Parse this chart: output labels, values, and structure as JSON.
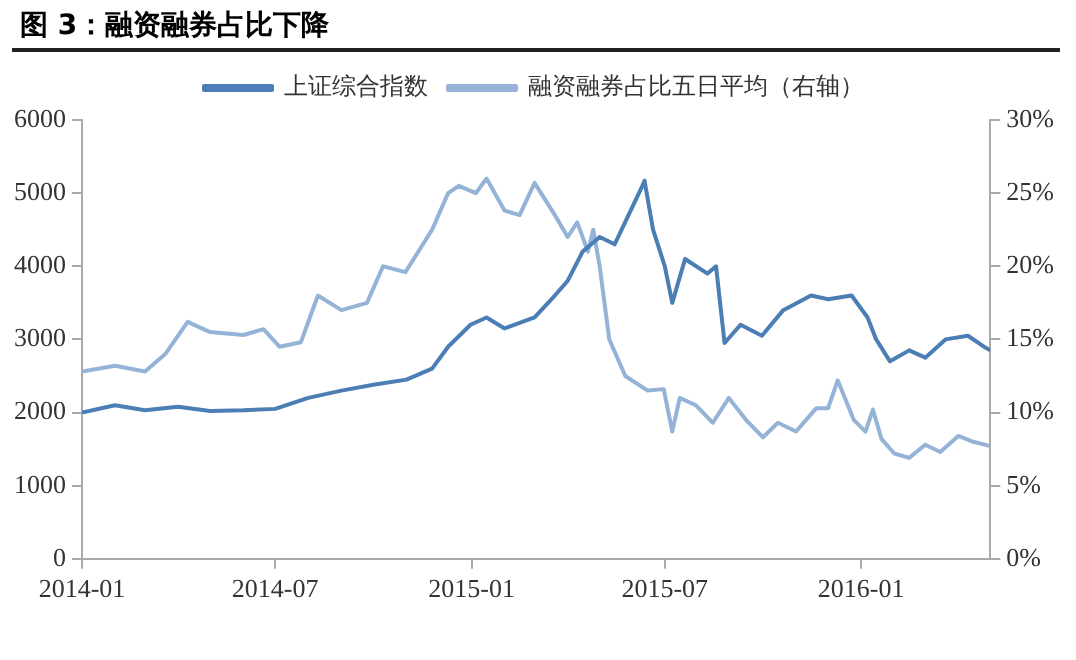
{
  "chart_data": {
    "type": "line",
    "title": "图 3：融资融券占比下降",
    "x": [
      "2014-01-01",
      "2014-02-01",
      "2014-03-01",
      "2014-04-01",
      "2014-05-01",
      "2014-06-01",
      "2014-07-01",
      "2014-08-01",
      "2014-09-01",
      "2014-10-01",
      "2014-11-01",
      "2014-11-25",
      "2014-12-10",
      "2014-12-31",
      "2015-01-15",
      "2015-02-01",
      "2015-03-01",
      "2015-03-20",
      "2015-04-01",
      "2015-04-15",
      "2015-05-01",
      "2015-05-15",
      "2015-06-10",
      "2015-06-12",
      "2015-06-20",
      "2015-07-01",
      "2015-07-08",
      "2015-07-20",
      "2015-08-10",
      "2015-08-18",
      "2015-08-26",
      "2015-09-10",
      "2015-09-30",
      "2015-10-20",
      "2015-11-15",
      "2015-12-01",
      "2015-12-23",
      "2016-01-07",
      "2016-01-15",
      "2016-01-28",
      "2016-02-15",
      "2016-03-01",
      "2016-03-20",
      "2016-04-10",
      "2016-04-25",
      "2016-05-01"
    ],
    "series": [
      {
        "name": "上证综合指数",
        "color": "#4a7eb5",
        "values": [
          2000,
          2100,
          2030,
          2080,
          2020,
          2030,
          2050,
          2200,
          2300,
          2380,
          2450,
          2600,
          2900,
          3200,
          3300,
          3150,
          3300,
          3600,
          3800,
          4200,
          4400,
          4300,
          5100,
          5170,
          4500,
          4000,
          3500,
          4100,
          3900,
          4000,
          2950,
          3200,
          3050,
          3400,
          3600,
          3550,
          3600,
          3300,
          3000,
          2700,
          2850,
          2750,
          3000,
          3050,
          2900,
          2850
        ]
      },
      {
        "name": "融资融券占比五日平均（右轴）",
        "color": "#95b3d7",
        "axis": "y2",
        "x": [
          "2014-01-01",
          "2014-02-01",
          "2014-03-01",
          "2014-03-20",
          "2014-04-10",
          "2014-05-01",
          "2014-06-01",
          "2014-06-20",
          "2014-07-05",
          "2014-07-25",
          "2014-08-10",
          "2014-09-01",
          "2014-09-25",
          "2014-10-10",
          "2014-10-31",
          "2014-11-25",
          "2014-12-10",
          "2014-12-20",
          "2015-01-05",
          "2015-01-15",
          "2015-02-01",
          "2015-02-15",
          "2015-03-01",
          "2015-03-20",
          "2015-04-01",
          "2015-04-10",
          "2015-04-20",
          "2015-04-25",
          "2015-05-01",
          "2015-05-10",
          "2015-05-25",
          "2015-06-15",
          "2015-06-30",
          "2015-07-08",
          "2015-07-15",
          "2015-07-30",
          "2015-08-15",
          "2015-08-30",
          "2015-09-15",
          "2015-10-01",
          "2015-10-15",
          "2015-11-01",
          "2015-11-20",
          "2015-12-01",
          "2015-12-10",
          "2015-12-25",
          "2016-01-05",
          "2016-01-12",
          "2016-01-20",
          "2016-02-01",
          "2016-02-15",
          "2016-03-01",
          "2016-03-15",
          "2016-04-01",
          "2016-04-15",
          "2016-05-01"
        ],
        "values": [
          12.8,
          13.2,
          12.8,
          14,
          16.2,
          15.5,
          15.3,
          15.7,
          14.5,
          14.8,
          18,
          17,
          17.5,
          20,
          19.6,
          22.5,
          25,
          25.5,
          25,
          26,
          23.8,
          23.5,
          25.7,
          23.5,
          22,
          23,
          21,
          22.5,
          20,
          15,
          12.5,
          11.5,
          11.6,
          8.7,
          11,
          10.5,
          9.3,
          11,
          9.5,
          8.3,
          9.3,
          8.7,
          10.3,
          10.3,
          12.2,
          9.5,
          8.7,
          10.2,
          8.2,
          7.2,
          6.9,
          7.8,
          7.3,
          8.4,
          8,
          7.7
        ]
      }
    ],
    "xlim": [
      "2014-01-01",
      "2016-05-01"
    ],
    "xticks": [
      {
        "value": "2014-01-01",
        "label": "2014-01"
      },
      {
        "value": "2014-07-01",
        "label": "2014-07"
      },
      {
        "value": "2015-01-01",
        "label": "2015-01"
      },
      {
        "value": "2015-07-01",
        "label": "2015-07"
      },
      {
        "value": "2016-01-01",
        "label": "2016-01"
      }
    ],
    "ylim": [
      0,
      6000
    ],
    "yticks": [
      0,
      1000,
      2000,
      3000,
      4000,
      5000,
      6000
    ],
    "y2lim": [
      0,
      30
    ],
    "y2ticks": [
      {
        "value": 0,
        "label": "0%"
      },
      {
        "value": 5,
        "label": "5%"
      },
      {
        "value": 10,
        "label": "10%"
      },
      {
        "value": 15,
        "label": "15%"
      },
      {
        "value": 20,
        "label": "20%"
      },
      {
        "value": 25,
        "label": "25%"
      },
      {
        "value": 30,
        "label": "30%"
      }
    ],
    "grid": false,
    "legend": "top",
    "marker": "none",
    "line_style": "solid"
  }
}
